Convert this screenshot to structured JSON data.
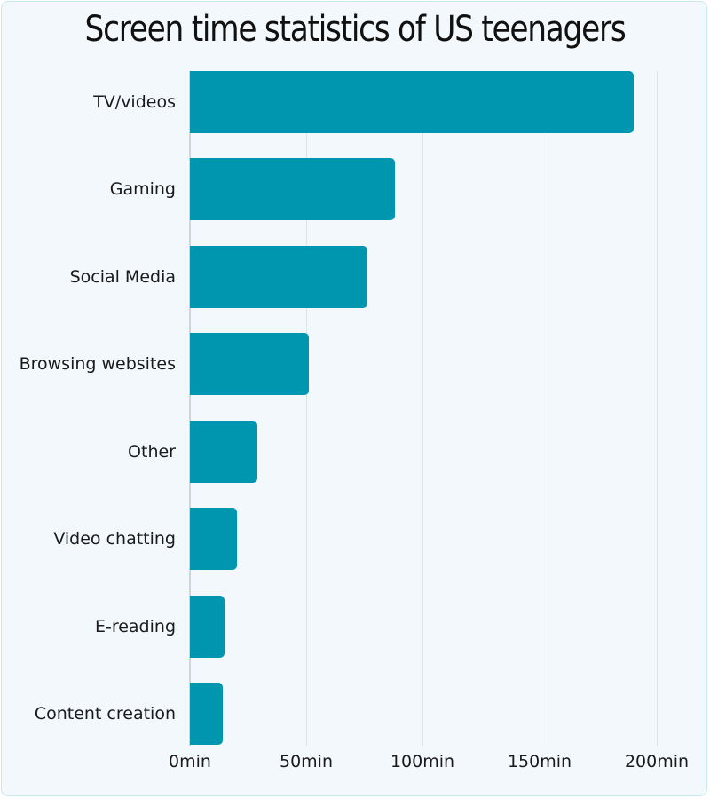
{
  "title": "Screen time statistics of US teenagers",
  "colors": {
    "bar": "#0096b0",
    "background": "#f3f8fc",
    "border": "#c6e9ee",
    "grid": "#dde2e6"
  },
  "x_ticks": [
    "0min",
    "50min",
    "100min",
    "150min",
    "200min"
  ],
  "categories": [
    {
      "label": "TV/videos",
      "value": 190
    },
    {
      "label": "Gaming",
      "value": 88
    },
    {
      "label": "Social Media",
      "value": 76
    },
    {
      "label": "Browsing websites",
      "value": 51
    },
    {
      "label": "Other",
      "value": 29
    },
    {
      "label": "Video chatting",
      "value": 20
    },
    {
      "label": "E-reading",
      "value": 15
    },
    {
      "label": "Content creation",
      "value": 14
    }
  ],
  "chart_data": {
    "type": "bar",
    "orientation": "horizontal",
    "title": "Screen time statistics of US teenagers",
    "categories": [
      "TV/videos",
      "Gaming",
      "Social Media",
      "Browsing websites",
      "Other",
      "Video chatting",
      "E-reading",
      "Content creation"
    ],
    "values": [
      190,
      88,
      76,
      51,
      29,
      20,
      15,
      14
    ],
    "unit": "min",
    "xlabel": "",
    "ylabel": "",
    "xlim": [
      0,
      200
    ],
    "x_ticks": [
      "0min",
      "50min",
      "100min",
      "150min",
      "200min"
    ],
    "grid": true,
    "legend": null
  }
}
